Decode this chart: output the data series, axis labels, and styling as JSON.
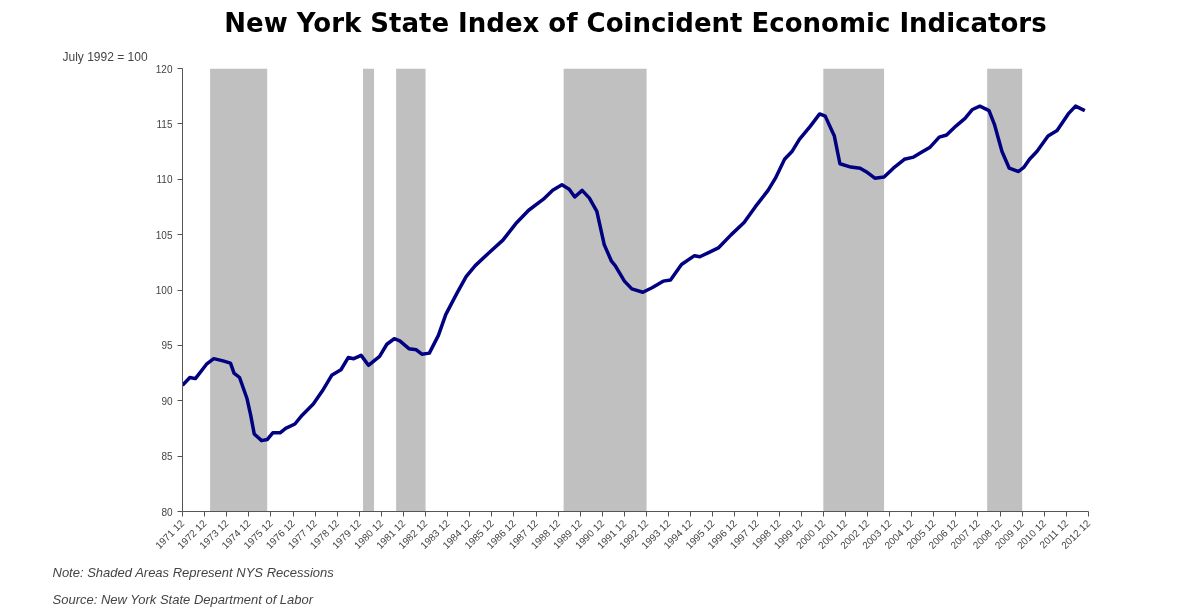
{
  "chart_data": {
    "type": "line",
    "title": "New York State Index of Coincident Economic Indicators",
    "subtitle": "July 1992 = 100",
    "annotations": [
      "Note: Shaded Areas Represent NYS Recessions",
      "Source: New York State Department of Labor"
    ],
    "x": [
      "1971-12",
      "1972-04",
      "1972-07",
      "1973-01",
      "1973-05",
      "1973-10",
      "1974-02",
      "1974-04",
      "1974-07",
      "1974-11",
      "1975-01",
      "1975-03",
      "1975-07",
      "1975-10",
      "1976-01",
      "1976-05",
      "1976-08",
      "1977-01",
      "1977-05",
      "1977-11",
      "1978-04",
      "1978-09",
      "1979-02",
      "1979-06",
      "1979-09",
      "1980-01",
      "1980-05",
      "1980-11",
      "1981-03",
      "1981-07",
      "1981-10",
      "1982-03",
      "1982-07",
      "1982-10",
      "1983-02",
      "1983-07",
      "1983-11",
      "1984-05",
      "1984-10",
      "1985-03",
      "1985-10",
      "1986-06",
      "1987-01",
      "1987-08",
      "1988-04",
      "1988-09",
      "1989-02",
      "1989-06",
      "1989-09",
      "1990-01",
      "1990-05",
      "1990-09",
      "1991-01",
      "1991-05",
      "1991-07",
      "1991-12",
      "1992-04",
      "1992-10",
      "1993-03",
      "1993-09",
      "1994-01",
      "1994-07",
      "1995-02",
      "1995-05",
      "1995-10",
      "1996-03",
      "1996-10",
      "1997-05",
      "1997-11",
      "1998-06",
      "1998-10",
      "1999-03",
      "1999-07",
      "1999-11",
      "2000-05",
      "2000-10",
      "2001-01",
      "2001-06",
      "2001-09",
      "2002-03",
      "2002-08",
      "2002-12",
      "2003-04",
      "2003-09",
      "2004-02",
      "2004-08",
      "2005-01",
      "2005-06",
      "2005-10",
      "2006-03",
      "2006-07",
      "2006-12",
      "2007-05",
      "2007-09",
      "2008-01",
      "2008-06",
      "2008-09",
      "2009-01",
      "2009-05",
      "2009-10",
      "2010-01",
      "2010-04",
      "2010-08",
      "2011-02",
      "2011-07",
      "2012-01",
      "2012-05",
      "2012-10"
    ],
    "series": [
      {
        "color": "#000080",
        "values": [
          91.4,
          92.1,
          92.0,
          93.3,
          93.8,
          93.6,
          93.4,
          92.5,
          92.1,
          90.2,
          88.7,
          87.0,
          86.4,
          86.5,
          87.1,
          87.1,
          87.5,
          87.9,
          88.7,
          89.7,
          90.9,
          92.3,
          92.8,
          93.9,
          93.8,
          94.1,
          93.2,
          94.0,
          95.1,
          95.6,
          95.4,
          94.7,
          94.6,
          94.2,
          94.3,
          95.9,
          97.8,
          99.7,
          101.2,
          102.2,
          103.3,
          104.5,
          106.0,
          107.2,
          108.2,
          109.0,
          109.5,
          109.1,
          108.4,
          109.0,
          108.3,
          107.1,
          104.1,
          102.6,
          102.2,
          100.8,
          100.1,
          99.8,
          100.2,
          100.8,
          100.9,
          102.3,
          103.1,
          103.0,
          103.4,
          103.8,
          105.0,
          106.1,
          107.5,
          109.0,
          110.1,
          111.8,
          112.5,
          113.6,
          114.8,
          115.9,
          115.7,
          113.9,
          111.4,
          111.1,
          111.0,
          110.6,
          110.1,
          110.2,
          111.0,
          111.8,
          112.0,
          112.5,
          112.9,
          113.8,
          114.0,
          114.8,
          115.5,
          116.3,
          116.6,
          116.2,
          114.9,
          112.5,
          111.0,
          110.7,
          111.1,
          111.8,
          112.5,
          113.9,
          114.4,
          115.9,
          116.6,
          116.2
        ]
      }
    ],
    "xlim": [
      "1971-12",
      "2012-12"
    ],
    "xticks": [
      {
        "value": "1971-12",
        "label": "1971 12"
      },
      {
        "value": "1972-12",
        "label": "1972 12"
      },
      {
        "value": "1973-12",
        "label": "1973 12"
      },
      {
        "value": "1974-12",
        "label": "1974 12"
      },
      {
        "value": "1975-12",
        "label": "1975 12"
      },
      {
        "value": "1976-12",
        "label": "1976 12"
      },
      {
        "value": "1977-12",
        "label": "1977 12"
      },
      {
        "value": "1978-12",
        "label": "1978 12"
      },
      {
        "value": "1979-12",
        "label": "1979 12"
      },
      {
        "value": "1980-12",
        "label": "1980 12"
      },
      {
        "value": "1981-12",
        "label": "1981 12"
      },
      {
        "value": "1982-12",
        "label": "1982 12"
      },
      {
        "value": "1983-12",
        "label": "1983 12"
      },
      {
        "value": "1984-12",
        "label": "1984 12"
      },
      {
        "value": "1985-12",
        "label": "1985 12"
      },
      {
        "value": "1986-12",
        "label": "1986 12"
      },
      {
        "value": "1987-12",
        "label": "1987 12"
      },
      {
        "value": "1988-12",
        "label": "1988 12"
      },
      {
        "value": "1989-12",
        "label": "1989 12"
      },
      {
        "value": "1990-12",
        "label": "1990 12"
      },
      {
        "value": "1991-12",
        "label": "1991 12"
      },
      {
        "value": "1992-12",
        "label": "1992 12"
      },
      {
        "value": "1993-12",
        "label": "1993 12"
      },
      {
        "value": "1994-12",
        "label": "1994 12"
      },
      {
        "value": "1995-12",
        "label": "1995 12"
      },
      {
        "value": "1996-12",
        "label": "1996 12"
      },
      {
        "value": "1997-12",
        "label": "1997 12"
      },
      {
        "value": "1998-12",
        "label": "1998 12"
      },
      {
        "value": "1999-12",
        "label": "1999 12"
      },
      {
        "value": "2000-12",
        "label": "2000 12"
      },
      {
        "value": "2001-12",
        "label": "2001 12"
      },
      {
        "value": "2002-12",
        "label": "2002 12"
      },
      {
        "value": "2003-12",
        "label": "2003 12"
      },
      {
        "value": "2004-12",
        "label": "2004 12"
      },
      {
        "value": "2005-12",
        "label": "2005 12"
      },
      {
        "value": "2006-12",
        "label": "2006 12"
      },
      {
        "value": "2007-12",
        "label": "2007 12"
      },
      {
        "value": "2008-12",
        "label": "2008 12"
      },
      {
        "value": "2009-12",
        "label": "2009 12"
      },
      {
        "value": "2010-12",
        "label": "2010 12"
      },
      {
        "value": "2011-12",
        "label": "2011 12"
      },
      {
        "value": "2012-12",
        "label": "2012 12"
      }
    ],
    "ylim": [
      80,
      120
    ],
    "yticks": [
      80,
      85,
      90,
      95,
      100,
      105,
      110,
      115,
      120
    ],
    "bands": [
      {
        "axis": "x",
        "from": "1973-03",
        "to": "1975-10",
        "color": "#c0c0c0"
      },
      {
        "axis": "x",
        "from": "1980-02",
        "to": "1980-08",
        "color": "#c0c0c0"
      },
      {
        "axis": "x",
        "from": "1981-08",
        "to": "1982-12",
        "color": "#c0c0c0"
      },
      {
        "axis": "x",
        "from": "1989-03",
        "to": "1992-12",
        "color": "#c0c0c0"
      },
      {
        "axis": "x",
        "from": "2000-12",
        "to": "2003-09",
        "color": "#c0c0c0"
      },
      {
        "axis": "x",
        "from": "2008-05",
        "to": "2009-12",
        "color": "#c0c0c0"
      }
    ],
    "grid": false,
    "line_style": "solid",
    "marker": "none"
  }
}
